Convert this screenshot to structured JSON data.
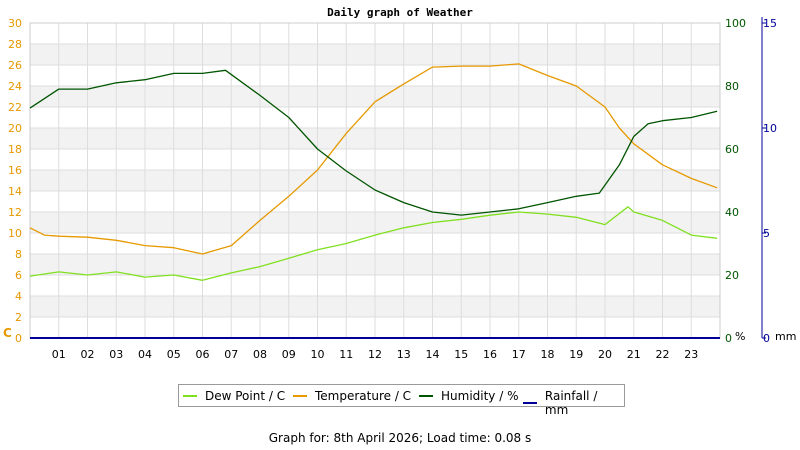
{
  "chart_data": {
    "type": "line",
    "title": "Daily graph of Weather",
    "x_ticks": [
      "01",
      "02",
      "03",
      "04",
      "05",
      "06",
      "07",
      "08",
      "09",
      "10",
      "11",
      "12",
      "13",
      "14",
      "15",
      "16",
      "17",
      "18",
      "19",
      "20",
      "21",
      "22",
      "23"
    ],
    "x_range": [
      0,
      24
    ],
    "grid": true,
    "legend_position": "bottom",
    "axes": {
      "left": {
        "unit": "C",
        "range": [
          0,
          30
        ],
        "ticks": [
          0,
          2,
          4,
          6,
          8,
          10,
          12,
          14,
          16,
          18,
          20,
          22,
          24,
          26,
          28,
          30
        ],
        "color": "#e69900"
      },
      "right_humidity": {
        "unit": "%",
        "range": [
          0,
          100
        ],
        "ticks": [
          0,
          20,
          40,
          60,
          80,
          100
        ],
        "color": "#005500"
      },
      "right_rain": {
        "unit": "mm",
        "range": [
          0,
          15
        ],
        "ticks": [
          0,
          5,
          10,
          15
        ],
        "color": "#000099"
      }
    },
    "series": [
      {
        "name": "Dew Point / C",
        "axis": "left",
        "color": "#80e020",
        "x": [
          0,
          1,
          2,
          3,
          4,
          5,
          6,
          7,
          8,
          9,
          10,
          11,
          12,
          13,
          14,
          15,
          16,
          17,
          18,
          19,
          20,
          20.8,
          21,
          22,
          23,
          23.9
        ],
        "y": [
          5.9,
          6.3,
          6.0,
          6.3,
          5.8,
          6.0,
          5.5,
          6.2,
          6.8,
          7.6,
          8.4,
          9.0,
          9.8,
          10.5,
          11.0,
          11.3,
          11.7,
          12.0,
          11.8,
          11.5,
          10.8,
          12.5,
          12.0,
          11.2,
          9.8,
          9.5
        ]
      },
      {
        "name": "Temperature / C",
        "axis": "left",
        "color": "#e69900",
        "x": [
          0,
          0.5,
          1,
          2,
          3,
          4,
          5,
          6,
          7,
          8,
          9,
          10,
          11,
          12,
          13,
          14,
          15,
          16,
          17,
          18,
          19,
          20,
          20.5,
          21,
          22,
          23,
          23.9
        ],
        "y": [
          10.5,
          9.8,
          9.7,
          9.6,
          9.3,
          8.8,
          8.6,
          8.0,
          8.8,
          11.2,
          13.5,
          16.0,
          19.5,
          22.5,
          24.2,
          25.8,
          25.9,
          25.9,
          26.1,
          25.0,
          24.0,
          22.0,
          20.0,
          18.5,
          16.5,
          15.2,
          14.3
        ]
      },
      {
        "name": "Humidity / %",
        "axis": "right_humidity",
        "color": "#005500",
        "x": [
          0,
          1,
          2,
          3,
          4,
          5,
          6,
          6.8,
          8,
          9,
          10,
          11,
          12,
          13,
          14,
          15,
          16,
          17,
          18,
          19,
          19.8,
          20.5,
          21,
          21.5,
          22,
          23,
          23.9
        ],
        "y": [
          73,
          79,
          79,
          81,
          82,
          84,
          84,
          85,
          77,
          70,
          60,
          53,
          47,
          43,
          40,
          39,
          40,
          41,
          43,
          45,
          46,
          55,
          64,
          68,
          69,
          70,
          72
        ]
      },
      {
        "name": "Rainfall / mm",
        "axis": "right_rain",
        "color": "#000099",
        "x": [
          0,
          24
        ],
        "y": [
          0,
          0
        ]
      }
    ]
  },
  "footer": "Graph for: 8th April 2026; Load time: 0.08 s"
}
